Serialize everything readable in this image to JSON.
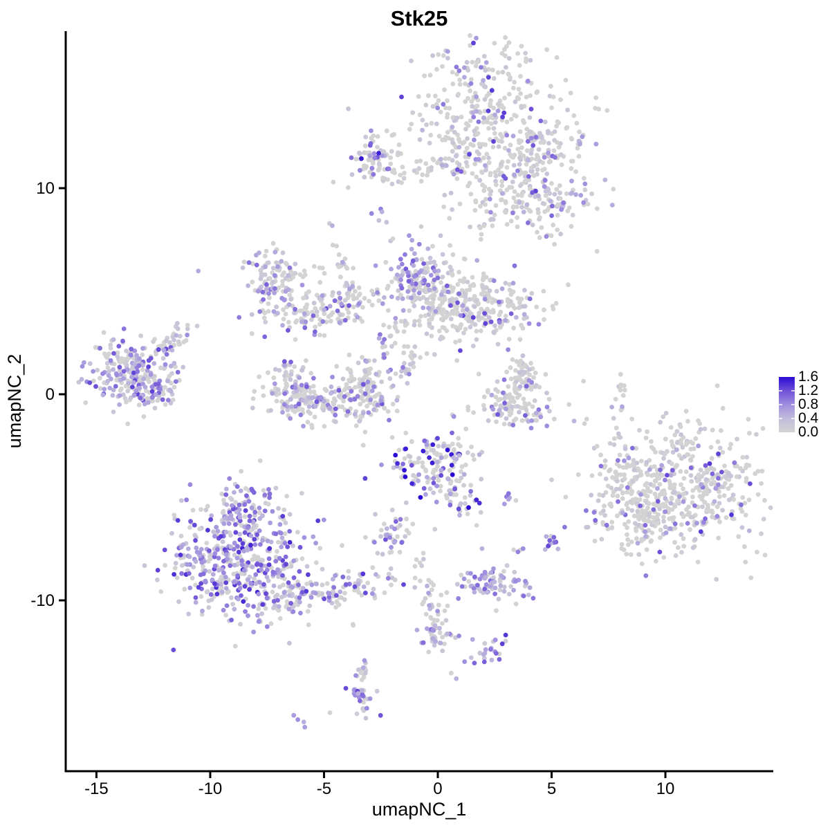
{
  "chart_data": {
    "type": "scatter",
    "subtype": "umap-feature-plot",
    "title": "Stk25",
    "xlabel": "umapNC_1",
    "ylabel": "umapNC_2",
    "x_ticks": [
      -15,
      -10,
      -5,
      0,
      5,
      10
    ],
    "y_ticks": [
      10,
      0,
      -10
    ],
    "xlim": [
      -16.35,
      14.74
    ],
    "ylim": [
      -18.29,
      17.62
    ],
    "grid": "off",
    "point_radius": 3.4,
    "background": "#ffffff",
    "axis_color": "#000000",
    "legend": {
      "position": "right",
      "labels": [
        "1.6",
        "1.2",
        "0.8",
        "0.4",
        "0.0"
      ],
      "min": 0.0,
      "max": 1.6
    },
    "color_ramp": [
      {
        "v": 0.0,
        "color": "#d3d3d3"
      },
      {
        "v": 0.4,
        "color": "#c2bcdb"
      },
      {
        "v": 0.8,
        "color": "#a08fdf"
      },
      {
        "v": 1.2,
        "color": "#6f51d8"
      },
      {
        "v": 1.6,
        "color": "#2b0bd5"
      }
    ],
    "point_encoding": "gaussian-clusters (cx,cy in data units; sx,sy spreads; rot degrees; n points; frac = fraction expressing; maxv = max expression)",
    "clusters": [
      {
        "name": "top-main",
        "cx": 2.04,
        "cy": 13.6,
        "sx": 1.7,
        "sy": 1.8,
        "rot": 0,
        "n": 330,
        "frac": 0.13,
        "maxv": 1.35
      },
      {
        "name": "top-arm-right",
        "cx": 4.47,
        "cy": 11.6,
        "sx": 1.1,
        "sy": 0.95,
        "rot": -20,
        "n": 130,
        "frac": 0.1,
        "maxv": 1.3
      },
      {
        "name": "top-lower",
        "cx": 3.1,
        "cy": 9.7,
        "sx": 0.9,
        "sy": 0.85,
        "rot": 0,
        "n": 80,
        "frac": 0.08,
        "maxv": 1.2
      },
      {
        "name": "top-right-spur",
        "cx": 5.23,
        "cy": 9.3,
        "sx": 1.0,
        "sy": 0.6,
        "rot": -15,
        "n": 60,
        "frac": 0.35,
        "maxv": 1.3
      },
      {
        "name": "top-below-sparse",
        "cx": 1.2,
        "cy": 8.4,
        "sx": 0.6,
        "sy": 0.9,
        "rot": 0,
        "n": 20,
        "frac": 0.05,
        "maxv": 1.0
      },
      {
        "name": "upper-left-blob",
        "cx": -2.67,
        "cy": 11.35,
        "sx": 0.55,
        "sy": 0.6,
        "rot": 0,
        "n": 65,
        "frac": 0.22,
        "maxv": 1.55
      },
      {
        "name": "upper-strand",
        "cx": -0.15,
        "cy": 11.0,
        "sx": 1.7,
        "sy": 0.28,
        "rot": -8,
        "n": 55,
        "frac": 0.12,
        "maxv": 1.1
      },
      {
        "name": "small-diag-pair",
        "cx": -2.64,
        "cy": 8.5,
        "sx": 0.22,
        "sy": 0.18,
        "rot": 45,
        "n": 5,
        "frac": 0.6,
        "maxv": 1.0
      },
      {
        "name": "mid-left-top",
        "cx": -7.14,
        "cy": 5.45,
        "sx": 0.65,
        "sy": 0.75,
        "rot": 0,
        "n": 100,
        "frac": 0.3,
        "maxv": 1.2
      },
      {
        "name": "mid-left-arc",
        "cx": -5.02,
        "cy": 4.15,
        "sx": 1.55,
        "sy": 0.5,
        "rot": -10,
        "n": 140,
        "frac": 0.25,
        "maxv": 1.2
      },
      {
        "name": "mid-left-sparse",
        "cx": -6.11,
        "cy": 6.0,
        "sx": 0.75,
        "sy": 0.2,
        "rot": 0,
        "n": 18,
        "frac": 0.06,
        "maxv": 0.9
      },
      {
        "name": "diag-strand",
        "cx": -3.98,
        "cy": 5.6,
        "sx": 0.12,
        "sy": 1.5,
        "rot": -17,
        "n": 26,
        "frac": 0.18,
        "maxv": 1.1
      },
      {
        "name": "mid-center-dense",
        "cx": -0.94,
        "cy": 5.8,
        "sx": 0.55,
        "sy": 0.65,
        "rot": 0,
        "n": 75,
        "frac": 0.55,
        "maxv": 1.2
      },
      {
        "name": "mid-center-main",
        "cx": 0.27,
        "cy": 4.65,
        "sx": 1.05,
        "sy": 1.05,
        "rot": 0,
        "n": 210,
        "frac": 0.12,
        "maxv": 1.3
      },
      {
        "name": "mid-center-right",
        "cx": 2.4,
        "cy": 4.3,
        "sx": 1.15,
        "sy": 0.8,
        "rot": -10,
        "n": 150,
        "frac": 0.17,
        "maxv": 1.35
      },
      {
        "name": "mid-center-tip",
        "cx": -2.05,
        "cy": 2.85,
        "sx": 0.25,
        "sy": 0.55,
        "rot": 15,
        "n": 22,
        "frac": 0.18,
        "maxv": 1.0
      },
      {
        "name": "mid-connector",
        "cx": -1.31,
        "cy": 2.0,
        "sx": 0.2,
        "sy": 0.45,
        "rot": 0,
        "n": 8,
        "frac": 0.05,
        "maxv": 0.8
      },
      {
        "name": "far-left-main",
        "cx": -13.37,
        "cy": 1.0,
        "sx": 1.0,
        "sy": 0.85,
        "rot": 8,
        "n": 250,
        "frac": 0.45,
        "maxv": 1.3
      },
      {
        "name": "far-left-arm",
        "cx": -11.73,
        "cy": 2.4,
        "sx": 0.55,
        "sy": 0.3,
        "rot": -38,
        "n": 35,
        "frac": 0.12,
        "maxv": 1.0
      },
      {
        "name": "far-left-bottom",
        "cx": -12.25,
        "cy": -0.2,
        "sx": 0.6,
        "sy": 0.25,
        "rot": -15,
        "n": 25,
        "frac": 0.3,
        "maxv": 1.1
      },
      {
        "name": "bowl-left-rim",
        "cx": -6.32,
        "cy": 0.5,
        "sx": 0.5,
        "sy": 0.65,
        "rot": 0,
        "n": 70,
        "frac": 0.25,
        "maxv": 1.2
      },
      {
        "name": "bowl-bottom",
        "cx": -4.71,
        "cy": -0.45,
        "sx": 1.5,
        "sy": 0.5,
        "rot": 5,
        "n": 180,
        "frac": 0.22,
        "maxv": 1.2
      },
      {
        "name": "bowl-right-rim",
        "cx": -3.19,
        "cy": 0.6,
        "sx": 0.55,
        "sy": 0.65,
        "rot": 0,
        "n": 80,
        "frac": 0.2,
        "maxv": 1.2
      },
      {
        "name": "center-strand",
        "cx": -1.55,
        "cy": 0.94,
        "sx": 0.55,
        "sy": 0.16,
        "rot": -42,
        "n": 18,
        "frac": 0.2,
        "maxv": 1.1
      },
      {
        "name": "check-upper-arm",
        "cx": 3.74,
        "cy": 1.15,
        "sx": 0.35,
        "sy": 0.45,
        "rot": -30,
        "n": 35,
        "frac": 0.08,
        "maxv": 1.0
      },
      {
        "name": "check-mass",
        "cx": 3.5,
        "cy": -0.05,
        "sx": 0.7,
        "sy": 0.55,
        "rot": 0,
        "n": 70,
        "frac": 0.1,
        "maxv": 1.1
      },
      {
        "name": "check-bottom-arc",
        "cx": 3.62,
        "cy": -0.95,
        "sx": 1.1,
        "sy": 0.3,
        "rot": 5,
        "n": 55,
        "frac": 0.25,
        "maxv": 1.2
      },
      {
        "name": "right-strand",
        "cx": 8.05,
        "cy": 0.25,
        "sx": 0.12,
        "sy": 0.65,
        "rot": 10,
        "n": 13,
        "frac": 0.05,
        "maxv": 0.9
      },
      {
        "name": "right-strand-dot",
        "cx": 8.05,
        "cy": -0.6,
        "sx": 0.05,
        "sy": 0.05,
        "rot": 0,
        "n": 1,
        "frac": 1,
        "maxv": 1.0
      },
      {
        "name": "center-low-main",
        "cx": -0.21,
        "cy": -3.4,
        "sx": 1.0,
        "sy": 0.85,
        "rot": 0,
        "n": 140,
        "frac": 0.35,
        "maxv": 1.65
      },
      {
        "name": "center-low-tail",
        "cx": 1.06,
        "cy": -4.95,
        "sx": 0.35,
        "sy": 0.75,
        "rot": -20,
        "n": 30,
        "frac": 0.3,
        "maxv": 1.65
      },
      {
        "name": "small-left-low",
        "cx": -2.04,
        "cy": -6.8,
        "sx": 0.5,
        "sy": 0.55,
        "rot": 0,
        "n": 40,
        "frac": 0.4,
        "maxv": 1.2
      },
      {
        "name": "small-pair-mid",
        "cx": 2.98,
        "cy": -5.05,
        "sx": 0.25,
        "sy": 0.2,
        "rot": 0,
        "n": 7,
        "frac": 0.45,
        "maxv": 1.0
      },
      {
        "name": "small-right-dots",
        "cx": 5.11,
        "cy": -7.15,
        "sx": 0.3,
        "sy": 0.35,
        "rot": 0,
        "n": 13,
        "frac": 0.65,
        "maxv": 1.3
      },
      {
        "name": "tiny-pair",
        "cx": 3.43,
        "cy": -7.55,
        "sx": 0.15,
        "sy": 0.2,
        "rot": 0,
        "n": 4,
        "frac": 0.3,
        "maxv": 1.0
      },
      {
        "name": "right-big-main",
        "cx": 10.7,
        "cy": -4.45,
        "sx": 2.0,
        "sy": 1.55,
        "rot": 5,
        "n": 520,
        "frac": 0.085,
        "maxv": 1.4
      },
      {
        "name": "right-big-ext",
        "cx": 8.78,
        "cy": -6.25,
        "sx": 0.75,
        "sy": 1.0,
        "rot": 20,
        "n": 80,
        "frac": 0.1,
        "maxv": 1.2
      },
      {
        "name": "right-big-spur",
        "cx": 8.12,
        "cy": -4.3,
        "sx": 0.4,
        "sy": 0.5,
        "rot": 0,
        "n": 25,
        "frac": 0.08,
        "maxv": 1.0
      },
      {
        "name": "bottom-left-main",
        "cx": -8.69,
        "cy": -8.1,
        "sx": 1.55,
        "sy": 1.4,
        "rot": 0,
        "n": 460,
        "frac": 0.5,
        "maxv": 1.45
      },
      {
        "name": "bottom-left-knob",
        "cx": -8.54,
        "cy": -5.6,
        "sx": 0.7,
        "sy": 0.7,
        "rot": 0,
        "n": 85,
        "frac": 0.45,
        "maxv": 1.3
      },
      {
        "name": "bottom-left-tail",
        "cx": -4.95,
        "cy": -9.65,
        "sx": 1.6,
        "sy": 0.45,
        "rot": -12,
        "n": 140,
        "frac": 0.35,
        "maxv": 1.3
      },
      {
        "name": "bottom-mid-purple",
        "cx": 2.52,
        "cy": -9.25,
        "sx": 0.8,
        "sy": 0.45,
        "rot": 5,
        "n": 85,
        "frac": 0.6,
        "maxv": 1.1
      },
      {
        "name": "chain-upper",
        "cx": -0.33,
        "cy": -10.15,
        "sx": 0.3,
        "sy": 1.2,
        "rot": -12,
        "n": 45,
        "frac": 0.22,
        "maxv": 1.1
      },
      {
        "name": "chain-blob",
        "cx": -0.03,
        "cy": -11.8,
        "sx": 0.35,
        "sy": 0.4,
        "rot": 0,
        "n": 28,
        "frac": 0.5,
        "maxv": 1.2
      },
      {
        "name": "chain-dot-1",
        "cx": 0.82,
        "cy": -11.7,
        "sx": 0.05,
        "sy": 0.05,
        "rot": 0,
        "n": 1,
        "frac": 1,
        "maxv": 1.0
      },
      {
        "name": "chain-dot-2",
        "cx": 1.52,
        "cy": -11.95,
        "sx": 0.05,
        "sy": 0.05,
        "rot": 0,
        "n": 1,
        "frac": 1,
        "maxv": 0.9
      },
      {
        "name": "chain-lower-cluster",
        "cx": 2.34,
        "cy": -12.4,
        "sx": 0.45,
        "sy": 0.3,
        "rot": -25,
        "n": 22,
        "frac": 0.45,
        "maxv": 1.6
      },
      {
        "name": "lone-dot-below",
        "cx": 0.67,
        "cy": -13.75,
        "sx": 0.05,
        "sy": 0.05,
        "rot": 0,
        "n": 1,
        "frac": 1,
        "maxv": 1.0
      },
      {
        "name": "bottom-strand-upper",
        "cx": -3.34,
        "cy": -13.6,
        "sx": 0.2,
        "sy": 0.5,
        "rot": 8,
        "n": 16,
        "frac": 0.15,
        "maxv": 1.0
      },
      {
        "name": "bottom-strand-blob",
        "cx": -3.31,
        "cy": -14.7,
        "sx": 0.3,
        "sy": 0.45,
        "rot": 0,
        "n": 30,
        "frac": 0.6,
        "maxv": 1.25
      },
      {
        "name": "stray-gray-dot",
        "cx": -4.71,
        "cy": -15.45,
        "sx": 0.05,
        "sy": 0.05,
        "rot": 0,
        "n": 1,
        "frac": 0,
        "maxv": 0
      },
      {
        "name": "bottom-pair",
        "cx": -5.93,
        "cy": -15.95,
        "sx": 0.18,
        "sy": 0.08,
        "rot": 40,
        "n": 4,
        "frac": 0.7,
        "maxv": 1.1
      },
      {
        "name": "stray-pair",
        "cx": -3.8,
        "cy": -11.7,
        "sx": 0.1,
        "sy": 0.3,
        "rot": 0,
        "n": 2,
        "frac": 0,
        "maxv": 0
      },
      {
        "name": "lone-left-dot",
        "cx": -10.52,
        "cy": 6.05,
        "sx": 0.05,
        "sy": 0.05,
        "rot": 0,
        "n": 1,
        "frac": 1,
        "maxv": 0.95
      },
      {
        "name": "lone-right-dot",
        "cx": 6.9,
        "cy": 6.9,
        "sx": 0.05,
        "sy": 0.05,
        "rot": 0,
        "n": 1,
        "frac": 0,
        "maxv": 0
      },
      {
        "name": "upper-mid-strays",
        "cx": -1.91,
        "cy": 7.4,
        "sx": 0.15,
        "sy": 0.25,
        "rot": 0,
        "n": 2,
        "frac": 0,
        "maxv": 0
      },
      {
        "name": "top-right-sparse",
        "cx": 4.77,
        "cy": 7.8,
        "sx": 0.5,
        "sy": 0.3,
        "rot": 0,
        "n": 10,
        "frac": 0.15,
        "maxv": 1.0
      }
    ]
  }
}
